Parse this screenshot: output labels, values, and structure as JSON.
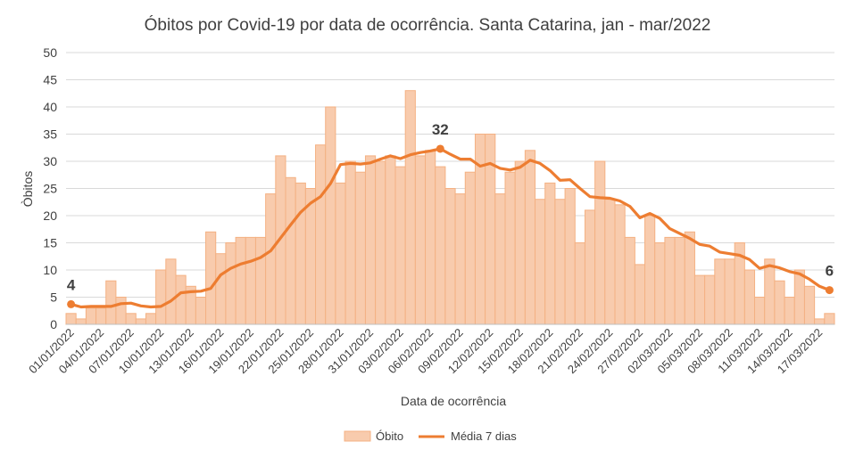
{
  "chart_data": {
    "type": "bar",
    "title": "Óbitos por Covid-19 por data de ocorrência. Santa Catarina, jan - mar/2022",
    "xlabel": "Data de ocorrência",
    "ylabel": "Òbitos",
    "ylim": [
      0,
      50
    ],
    "yticks": [
      0,
      5,
      10,
      15,
      20,
      25,
      30,
      35,
      40,
      45,
      50
    ],
    "grid": true,
    "legend_position": "bottom",
    "xtick_labels": [
      "01/01/2022",
      "04/01/2022",
      "07/01/2022",
      "10/01/2022",
      "13/01/2022",
      "16/01/2022",
      "19/01/2022",
      "22/01/2022",
      "25/01/2022",
      "28/01/2022",
      "31/01/2022",
      "03/02/2022",
      "06/02/2022",
      "09/02/2022",
      "12/02/2022",
      "15/02/2022",
      "18/02/2022",
      "21/02/2022",
      "24/02/2022",
      "27/02/2022",
      "02/03/2022",
      "05/03/2022",
      "08/03/2022",
      "11/03/2022",
      "14/03/2022",
      "17/03/2022"
    ],
    "series": [
      {
        "name": "Óbito",
        "kind": "bar",
        "color": "#F8CBAD",
        "edge_color": "#F4B183",
        "values": [
          2,
          1,
          3,
          3,
          8,
          5,
          2,
          1,
          2,
          10,
          12,
          9,
          7,
          5,
          17,
          13,
          15,
          16,
          16,
          16,
          24,
          31,
          27,
          26,
          25,
          33,
          40,
          26,
          30,
          28,
          31,
          30,
          31,
          29,
          43,
          31,
          32,
          29,
          25,
          24,
          28,
          35,
          35,
          24,
          28,
          30,
          32,
          23,
          26,
          23,
          25,
          15,
          21,
          30,
          23,
          22,
          16,
          11,
          20,
          15,
          16,
          16,
          17,
          9,
          9,
          12,
          12,
          15,
          10,
          5,
          12,
          8,
          5,
          10,
          7,
          1,
          2
        ]
      },
      {
        "name": "Média 7 dias",
        "kind": "line",
        "color": "#ED7D31",
        "values": [
          3.7,
          3.2,
          3.3,
          3.3,
          3.3,
          3.8,
          3.9,
          3.4,
          3.2,
          3.3,
          4.3,
          5.8,
          6.0,
          6.1,
          6.6,
          9.1,
          10.3,
          11.1,
          11.6,
          12.3,
          13.5,
          15.9,
          18.3,
          20.6,
          22.3,
          23.5,
          25.9,
          29.4,
          29.6,
          29.5,
          29.7,
          30.4,
          31.0,
          30.5,
          31.2,
          31.6,
          31.9,
          32.3,
          31.3,
          30.4,
          30.4,
          29.1,
          29.6,
          28.7,
          28.4,
          28.9,
          30.2,
          29.6,
          28.3,
          26.5,
          26.6,
          25.0,
          23.5,
          23.3,
          23.2,
          22.7,
          21.7,
          19.6,
          20.4,
          19.5,
          17.6,
          16.7,
          15.8,
          14.7,
          14.4,
          13.3,
          13.0,
          12.7,
          11.9,
          10.3,
          10.8,
          10.4,
          9.7,
          9.3,
          8.3,
          7.0,
          6.3
        ]
      }
    ],
    "callouts": [
      {
        "label": "4",
        "index": 0,
        "value": 3.7
      },
      {
        "label": "32",
        "index": 37,
        "value": 32.3
      },
      {
        "label": "6",
        "index": 76,
        "value": 6.3
      }
    ]
  }
}
